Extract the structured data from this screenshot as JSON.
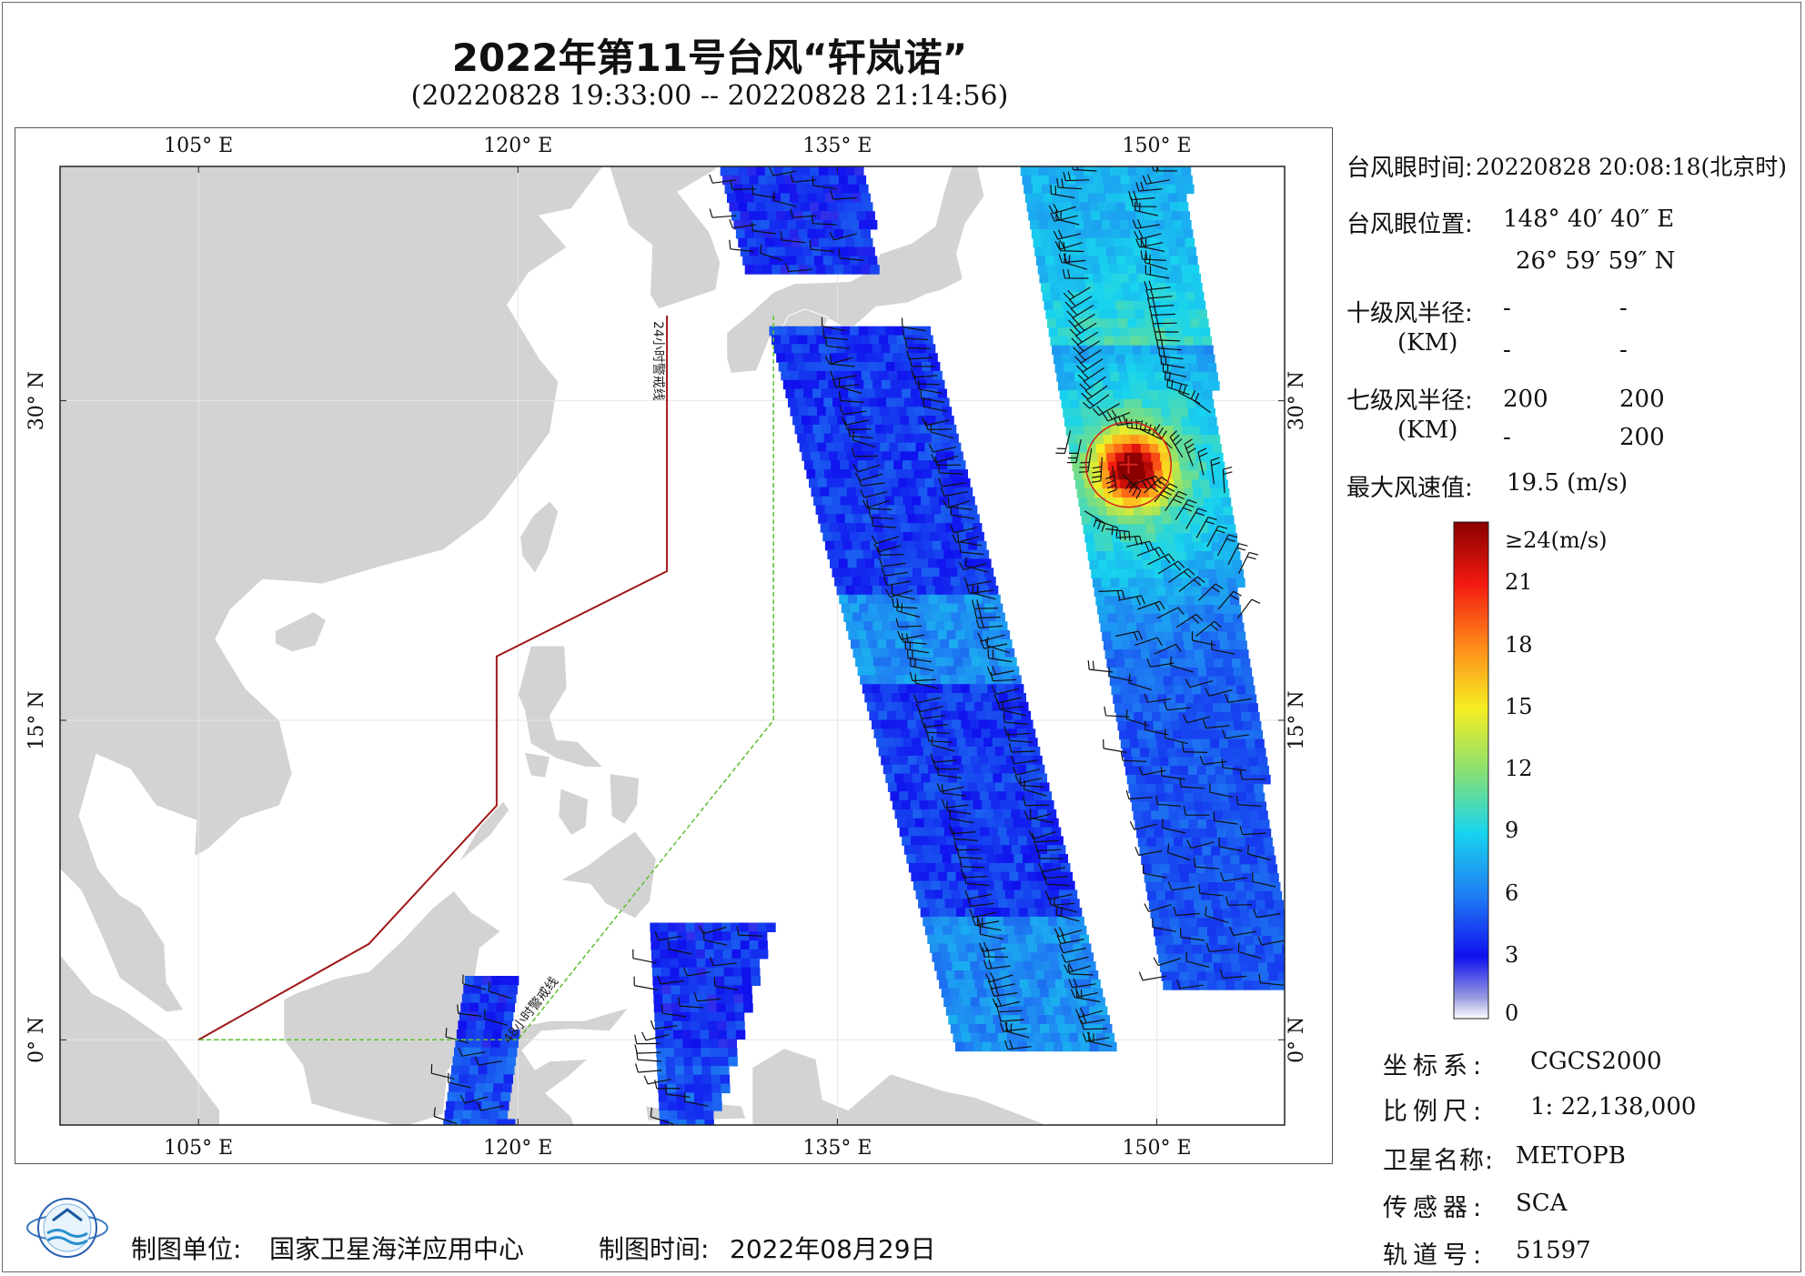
{
  "header": {
    "title": "2022年第11号台风“轩岚诺”",
    "subtitle": "(20220828 19:33:00 -- 20220828 21:14:56)"
  },
  "map": {
    "extent": {
      "lon": [
        98.5,
        156
      ],
      "lat": [
        -4,
        41
      ]
    },
    "lon_ticks": [
      {
        "value": 105,
        "label": "105° E"
      },
      {
        "value": 120,
        "label": "120° E"
      },
      {
        "value": 135,
        "label": "135° E"
      },
      {
        "value": 150,
        "label": "150° E"
      }
    ],
    "lat_ticks": [
      {
        "value": 0,
        "label": "0° N"
      },
      {
        "value": 15,
        "label": "15° N"
      },
      {
        "value": 30,
        "label": "30° N"
      }
    ],
    "warning_line_24h": {
      "label": "24小时警戒线",
      "color": "#a01818",
      "points": [
        [
          127,
          34
        ],
        [
          127,
          22
        ],
        [
          119,
          18
        ],
        [
          119,
          11
        ],
        [
          113,
          4.5
        ],
        [
          105,
          0
        ]
      ]
    },
    "warning_line_48h": {
      "label": "48小时警戒线",
      "color": "#5bbf2e",
      "points": [
        [
          132,
          34
        ],
        [
          132,
          15
        ],
        [
          120,
          0
        ],
        [
          105,
          0
        ]
      ]
    },
    "typhoon_eye": {
      "lon": 148.67,
      "lat": 27.0,
      "radius_deg": 2.0,
      "color": "#d62020"
    },
    "land_color": "#d3d3d3",
    "ocean_color": "#ffffff",
    "grid_color": "#e6e6e6"
  },
  "info_panel": {
    "eye_time_label": "台风眼时间:",
    "eye_time_value": "20220828 20:08:18(北京时)",
    "eye_pos_label": "台风眼位置:",
    "eye_lon": "148° 40′ 40″ E",
    "eye_lat": "26° 59′ 59″ N",
    "r10_label": "十级风半径:",
    "r10_unit": "(KM)",
    "r10_values": [
      "-",
      "-",
      "-",
      "-"
    ],
    "r7_label": "七级风半径:",
    "r7_unit": "(KM)",
    "r7_values": [
      "200",
      "200",
      "-",
      "200"
    ],
    "max_wind_label": "最大风速值:",
    "max_wind_value": "19.5  (m/s)"
  },
  "colorbar": {
    "ticks": [
      {
        "value": 24,
        "label": "≥24(m/s)"
      },
      {
        "value": 21,
        "label": "21"
      },
      {
        "value": 18,
        "label": "18"
      },
      {
        "value": 15,
        "label": "15"
      },
      {
        "value": 12,
        "label": "12"
      },
      {
        "value": 9,
        "label": "9"
      },
      {
        "value": 6,
        "label": "6"
      },
      {
        "value": 3,
        "label": "3"
      },
      {
        "value": 0,
        "label": "0"
      }
    ],
    "colors": [
      "#ffffff",
      "#9a9ae0",
      "#1010ee",
      "#1f7ff2",
      "#18d4ee",
      "#8ae070",
      "#f5ee22",
      "#ff8a1a",
      "#f21a10",
      "#8a0000"
    ]
  },
  "metadata": {
    "crs_label": "坐标系:",
    "crs_value": "CGCS2000",
    "scale_label": "比例尺:",
    "scale_value": "1: 22,138,000",
    "satellite_label": "卫星名称:",
    "satellite_value": "METOPB",
    "sensor_label": "传感器:",
    "sensor_value": "SCA",
    "orbit_label": "轨道号:",
    "orbit_value": "51597"
  },
  "footer": {
    "org_label": "制图单位:",
    "org_value": "国家卫星海洋应用中心",
    "date_label": "制图时间:",
    "date_value": "2022年08月29日"
  }
}
